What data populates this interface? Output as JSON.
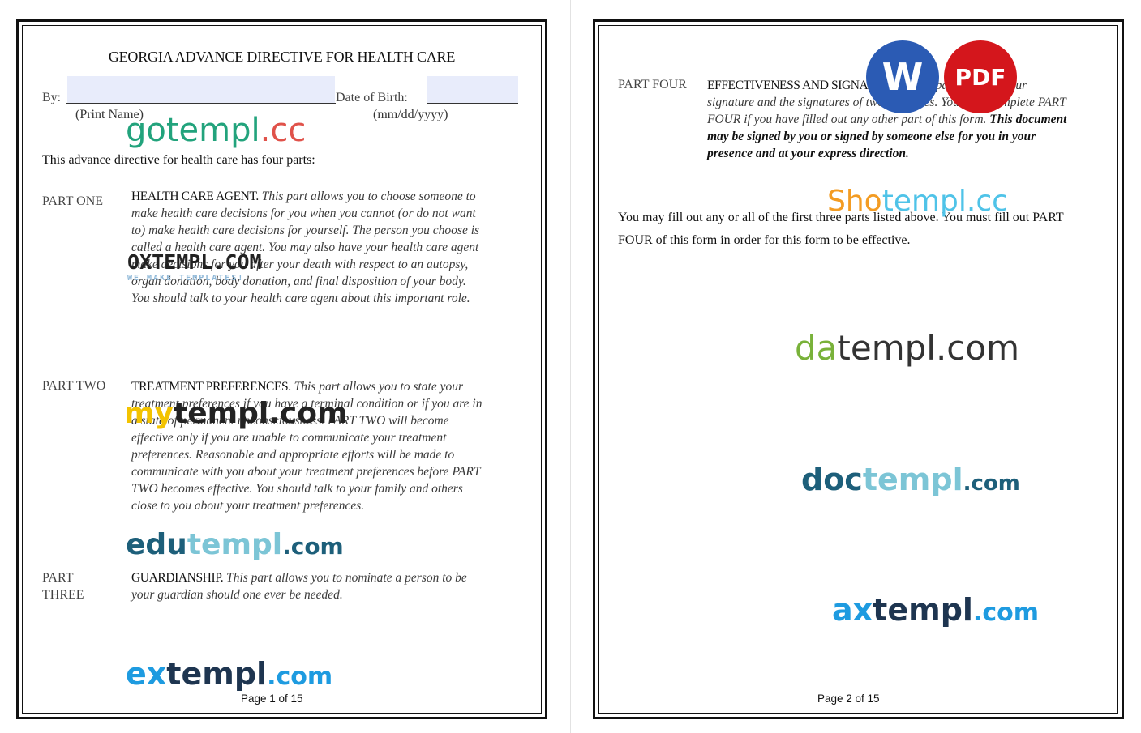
{
  "pages": [
    {
      "title": "GEORGIA ADVANCE DIRECTIVE FOR HEALTH CARE",
      "by_label": "By:",
      "dob_label": "Date of Birth:",
      "name_hint": "(Print Name)",
      "dob_hint": "(mm/dd/yyyy)",
      "intro": "This advance directive for health care has four parts:",
      "parts": [
        {
          "label": "PART ONE",
          "heading": "HEALTH CARE AGENT.",
          "body": "This part allows you to choose someone to make health care decisions for you when you cannot (or do not want to) make health care decisions for yourself. The person you choose is called a health care agent. You may also have your health care agent make decisions for you after your death with respect to an autopsy, organ donation, body donation, and final disposition of your body. You should talk to your health care agent about this important role."
        },
        {
          "label": "PART TWO",
          "heading": "TREATMENT PREFERENCES.",
          "body": "This part allows you to state your treatment preferences if you have a terminal condition or if you are in a state of permanent unconsciousness. PART TWO will become effective only if you are unable to communicate your treatment preferences. Reasonable and appropriate efforts will be made to communicate with you about your treatment preferences before PART TWO becomes effective. You should talk to your family and others close to you about your treatment preferences."
        },
        {
          "label": "PART THREE",
          "heading": "GUARDIANSHIP.",
          "body": "This part allows you to nominate a person to be your guardian should one ever be needed."
        }
      ],
      "footer": "Page 1 of 15"
    },
    {
      "parts": [
        {
          "label": "PART FOUR",
          "heading": "EFFECTIVENESS AND SIGNATURES.",
          "body": "This part requires your signature and the signatures of two witnesses. You must complete PART FOUR if you have filled out any other part of this form.",
          "emphasis": "This document may be signed by you or signed by someone else for you in your presence and at your express direction."
        }
      ],
      "note": "You may fill out any or all of the first three parts listed above. You must fill out PART FOUR of this form in order for this form to be effective.",
      "footer": "Page 2 of 15"
    }
  ],
  "badges": [
    "W",
    "PDF"
  ],
  "watermarks": [
    {
      "parts": [
        "go",
        "templ",
        ".cc"
      ]
    },
    {
      "parts": [
        "OXTEMPL.COM"
      ],
      "tagline": "WE MAKE TEMPLATES!"
    },
    {
      "parts": [
        "my",
        "templ.com"
      ]
    },
    {
      "parts": [
        "edu",
        "templ",
        ".com"
      ]
    },
    {
      "parts": [
        "ex",
        "templ",
        ".com"
      ]
    },
    {
      "parts": [
        "Sho",
        "templ.cc"
      ]
    },
    {
      "parts": [
        "da",
        "templ.com"
      ]
    },
    {
      "parts": [
        "doc",
        "templ",
        ".com"
      ]
    },
    {
      "parts": [
        "ax",
        "templ",
        ".com"
      ]
    }
  ]
}
